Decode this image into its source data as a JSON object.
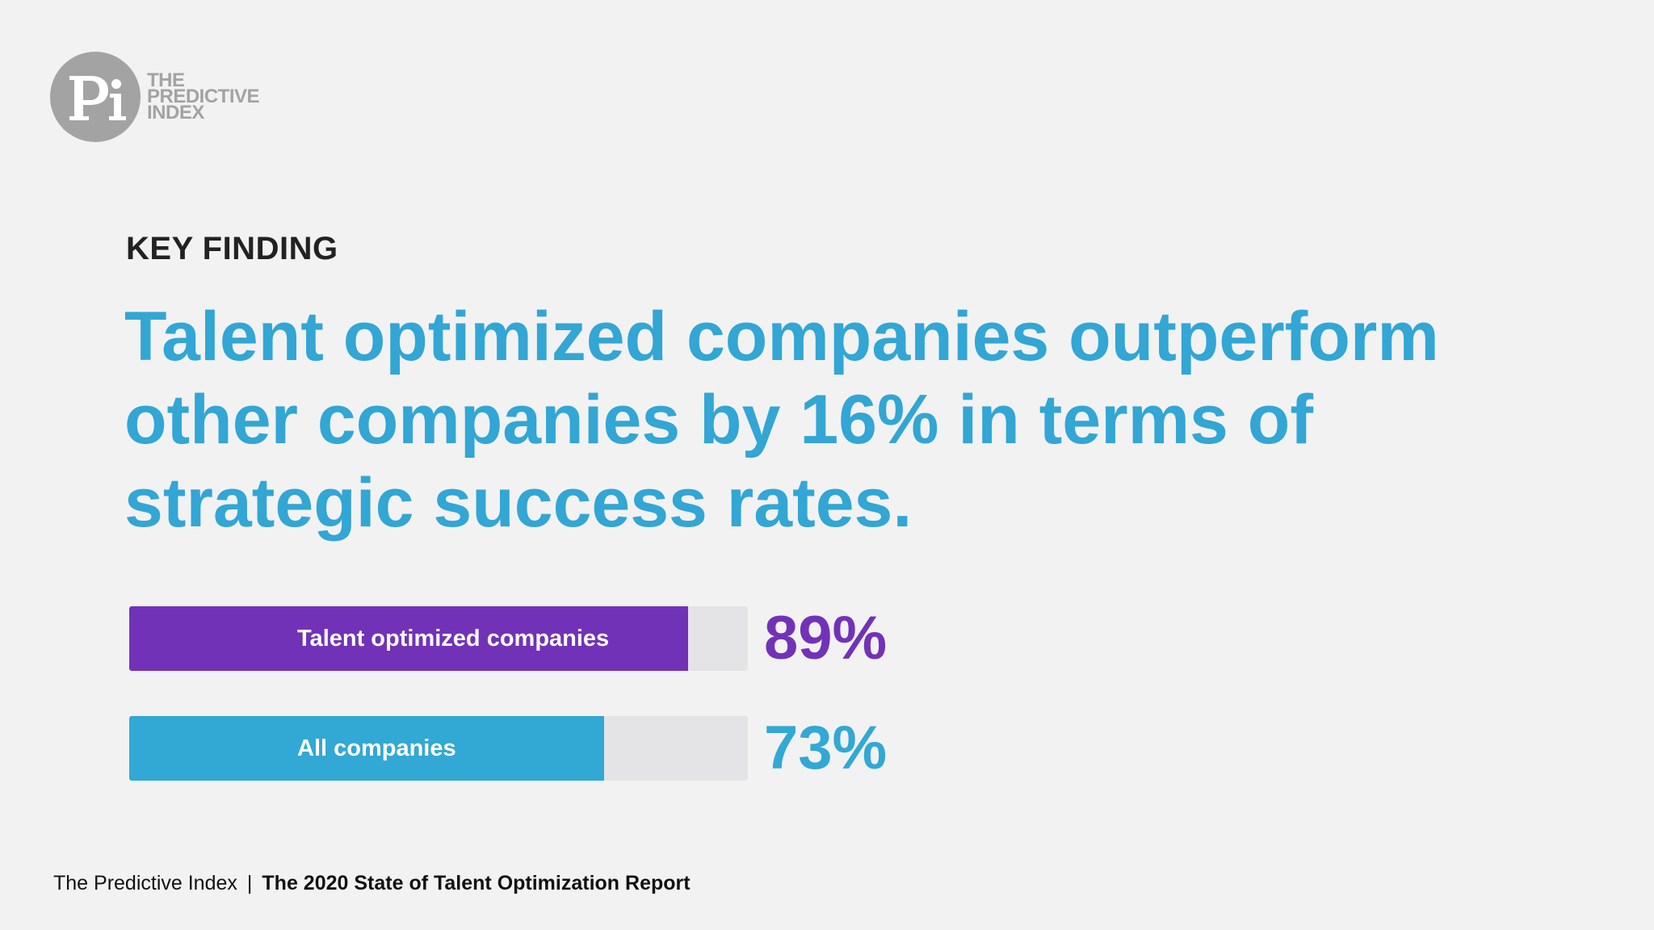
{
  "logo": {
    "line1": "THE",
    "line2": "PREDICTIVE",
    "line3": "INDEX",
    "mark": "PI"
  },
  "kicker": "KEY FINDING",
  "headline": "Talent optimized companies outperform other companies by 16% in terms of strategic success rates.",
  "chart_data": {
    "type": "bar",
    "orientation": "horizontal",
    "categories": [
      "Talent optimized companies",
      "All companies"
    ],
    "values": [
      89,
      73
    ],
    "value_labels": [
      "89%",
      "73%"
    ],
    "colors": [
      "#7232b8",
      "#32a8d4"
    ],
    "track_color": "#e4e4e6",
    "xlim": [
      0,
      100
    ],
    "title": "",
    "xlabel": "",
    "ylabel": ""
  },
  "footer": {
    "source": "The Predictive Index",
    "separator": "|",
    "report": "The 2020 State of Talent Optimization Report"
  }
}
